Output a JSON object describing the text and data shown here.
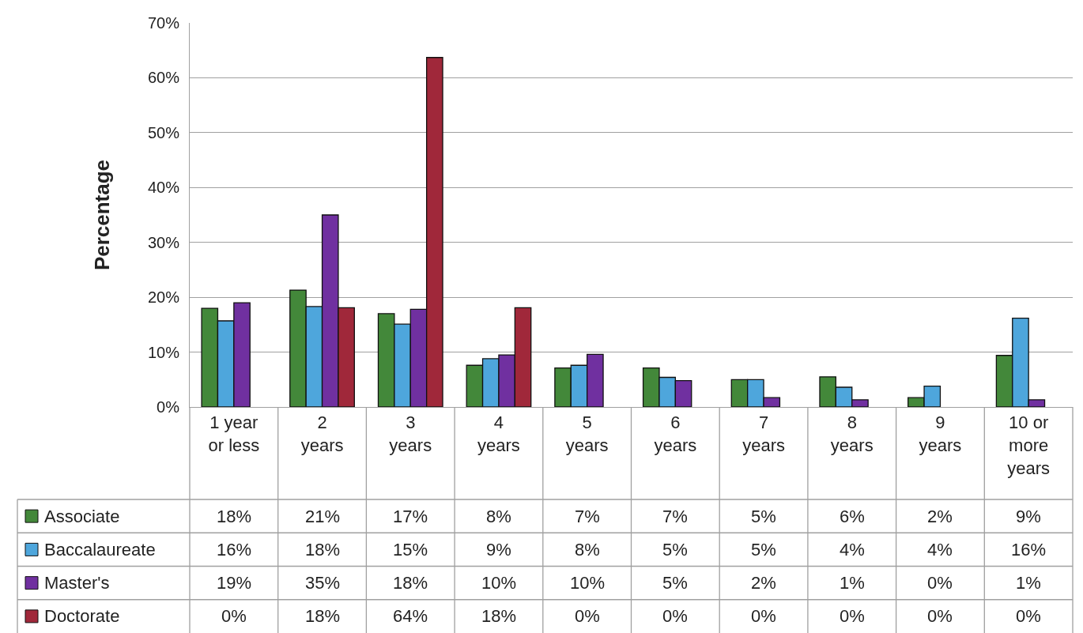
{
  "chart_data": {
    "type": "bar",
    "ylabel": "Percentage",
    "categories": [
      "1 year or less",
      "2 years",
      "3 years",
      "4 years",
      "5 years",
      "6 years",
      "7 years",
      "8 years",
      "9 years",
      "10 or more years"
    ],
    "series": [
      {
        "name": "Associate",
        "color": "#43883a",
        "values": [
          18.0,
          21.3,
          17.0,
          7.6,
          7.1,
          7.1,
          5.0,
          5.5,
          1.7,
          9.4
        ],
        "value_labels": [
          "18%",
          "21%",
          "17%",
          "8%",
          "7%",
          "7%",
          "5%",
          "6%",
          "2%",
          "9%"
        ]
      },
      {
        "name": "Baccalaureate",
        "color": "#4ea6dc",
        "values": [
          15.7,
          18.3,
          15.1,
          8.8,
          7.6,
          5.4,
          5.0,
          3.6,
          3.8,
          16.2
        ],
        "value_labels": [
          "16%",
          "18%",
          "15%",
          "9%",
          "8%",
          "5%",
          "5%",
          "4%",
          "4%",
          "16%"
        ]
      },
      {
        "name": "Master's",
        "color": "#7030a0",
        "values": [
          19.0,
          35.0,
          17.8,
          9.5,
          9.6,
          4.8,
          1.7,
          1.3,
          0,
          1.3
        ],
        "value_labels": [
          "19%",
          "35%",
          "18%",
          "10%",
          "10%",
          "5%",
          "2%",
          "1%",
          "0%",
          "1%"
        ]
      },
      {
        "name": "Doctorate",
        "color": "#a0283a",
        "values": [
          0,
          18.1,
          63.7,
          18.1,
          0,
          0,
          0,
          0,
          0,
          0
        ],
        "value_labels": [
          "0%",
          "18%",
          "64%",
          "18%",
          "0%",
          "0%",
          "0%",
          "0%",
          "0%",
          "0%"
        ]
      }
    ],
    "ylim": [
      0,
      70
    ],
    "yticks": [
      {
        "value": 0,
        "label": "0%"
      },
      {
        "value": 10,
        "label": "10%"
      },
      {
        "value": 20,
        "label": "20%"
      },
      {
        "value": 30,
        "label": "30%"
      },
      {
        "value": 40,
        "label": "40%"
      },
      {
        "value": 50,
        "label": "50%"
      },
      {
        "value": 60,
        "label": "60%"
      },
      {
        "value": 70,
        "label": "70%"
      }
    ],
    "grid": "y",
    "legend": "bottom"
  }
}
